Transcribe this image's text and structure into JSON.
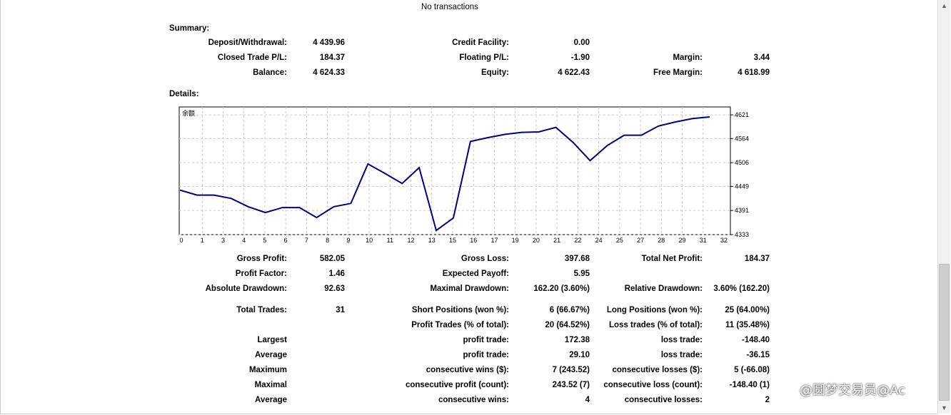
{
  "header": {
    "no_transactions": "No transactions"
  },
  "summary": {
    "title": "Summary:",
    "deposit_label": "Deposit/Withdrawal:",
    "deposit": "4 439.96",
    "credit_label": "Credit Facility:",
    "credit": "0.00",
    "closed_pl_label": "Closed Trade P/L:",
    "closed_pl": "184.37",
    "floating_pl_label": "Floating P/L:",
    "floating_pl": "-1.90",
    "margin_label": "Margin:",
    "margin": "3.44",
    "balance_label": "Balance:",
    "balance": "4 624.33",
    "equity_label": "Equity:",
    "equity": "4 622.43",
    "free_margin_label": "Free Margin:",
    "free_margin": "4 618.99"
  },
  "details": {
    "title": "Details:"
  },
  "chart_data": {
    "type": "line",
    "title": "余额",
    "x_ticks": [
      "0",
      "1",
      "3",
      "4",
      "5",
      "6",
      "7",
      "8",
      "9",
      "10",
      "11",
      "12",
      "13",
      "15",
      "16",
      "17",
      "19",
      "20",
      "21",
      "22",
      "24",
      "25",
      "27",
      "28",
      "29",
      "31",
      "32"
    ],
    "y_ticks": [
      4333,
      4391,
      4449,
      4506,
      4564,
      4621
    ],
    "ylim": [
      4333,
      4640
    ],
    "grid": true,
    "color": "#000080",
    "series": [
      {
        "values": [
          4440,
          4428,
          4428,
          4420,
          4400,
          4386,
          4398,
          4398,
          4374,
          4400,
          4408,
          4503,
          4480,
          4456,
          4494,
          4343,
          4373,
          4557,
          4566,
          4574,
          4579,
          4580,
          4591,
          4555,
          4511,
          4547,
          4572,
          4572,
          4594,
          4604,
          4612,
          4616
        ]
      }
    ]
  },
  "stats": {
    "gross_profit_label": "Gross Profit:",
    "gross_profit": "582.05",
    "gross_loss_label": "Gross Loss:",
    "gross_loss": "397.68",
    "total_net_profit_label": "Total Net Profit:",
    "total_net_profit": "184.37",
    "profit_factor_label": "Profit Factor:",
    "profit_factor": "1.46",
    "expected_payoff_label": "Expected Payoff:",
    "expected_payoff": "5.95",
    "absolute_drawdown_label": "Absolute Drawdown:",
    "absolute_drawdown": "92.63",
    "maximal_drawdown_label": "Maximal Drawdown:",
    "maximal_drawdown": "162.20 (3.60%)",
    "relative_drawdown_label": "Relative Drawdown:",
    "relative_drawdown": "3.60% (162.20)",
    "total_trades_label": "Total Trades:",
    "total_trades": "31",
    "short_positions_label": "Short Positions (won %):",
    "short_positions": "6 (66.67%)",
    "long_positions_label": "Long Positions (won %):",
    "long_positions": "25 (64.00%)",
    "profit_trades_label": "Profit Trades (% of total):",
    "profit_trades": "20 (64.52%)",
    "loss_trades_label": "Loss trades (% of total):",
    "loss_trades": "11 (35.48%)",
    "largest_label": "Largest",
    "largest_profit_label": "profit trade:",
    "largest_profit": "172.38",
    "largest_loss_label": "loss trade:",
    "largest_loss": "-148.40",
    "average_label": "Average",
    "average_profit_label": "profit trade:",
    "average_profit": "29.10",
    "average_loss_label": "loss trade:",
    "average_loss": "-36.15",
    "maximum_label": "Maximum",
    "max_cons_wins_label": "consecutive wins ($):",
    "max_cons_wins": "7 (243.52)",
    "max_cons_losses_label": "consecutive losses ($):",
    "max_cons_losses": "5 (-66.08)",
    "maximal_label": "Maximal",
    "maximal_cons_profit_label": "consecutive profit (count):",
    "maximal_cons_profit": "243.52 (7)",
    "maximal_cons_loss_label": "consecutive loss (count):",
    "maximal_cons_loss": "-148.40 (1)",
    "average2_label": "Average",
    "avg_cons_wins_label": "consecutive wins:",
    "avg_cons_wins": "4",
    "avg_cons_losses_label": "consecutive losses:",
    "avg_cons_losses": "2"
  },
  "watermark": "@圆梦交易员@Ac"
}
